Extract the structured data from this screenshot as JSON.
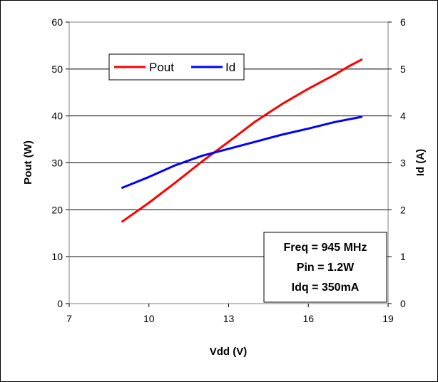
{
  "chart_data": {
    "type": "line",
    "xlabel": "Vdd (V)",
    "ylabel": "Pout (W)",
    "y2label": "Id (A)",
    "xlim": [
      7,
      19
    ],
    "ylim": [
      0,
      60
    ],
    "y2lim": [
      0,
      6
    ],
    "x_ticks": [
      "7",
      "10",
      "13",
      "16",
      "19"
    ],
    "y_ticks": [
      "0",
      "10",
      "20",
      "30",
      "40",
      "50",
      "60"
    ],
    "y2_ticks": [
      "0",
      "1",
      "2",
      "3",
      "4",
      "5",
      "6"
    ],
    "grid": "horizontal",
    "legend_position": "top-left",
    "series": [
      {
        "name": "Pout",
        "axis": "left",
        "color": "#ff0000",
        "x": [
          9,
          10,
          11,
          12,
          13,
          14,
          15,
          16,
          16.5,
          17,
          17.5,
          18
        ],
        "y": [
          17.5,
          21.5,
          25.8,
          30.3,
          34.5,
          38.8,
          42.5,
          45.8,
          47.3,
          48.8,
          50.5,
          52
        ]
      },
      {
        "name": "Id",
        "axis": "right",
        "color": "#0000ff",
        "x": [
          9,
          10,
          11,
          12,
          13,
          14,
          15,
          16,
          17,
          18
        ],
        "y": [
          2.47,
          2.7,
          2.95,
          3.15,
          3.3,
          3.45,
          3.6,
          3.73,
          3.87,
          3.98
        ]
      }
    ],
    "annotation": [
      "Freq = 945 MHz",
      "Pin = 1.2W",
      "Idq = 350mA"
    ]
  }
}
